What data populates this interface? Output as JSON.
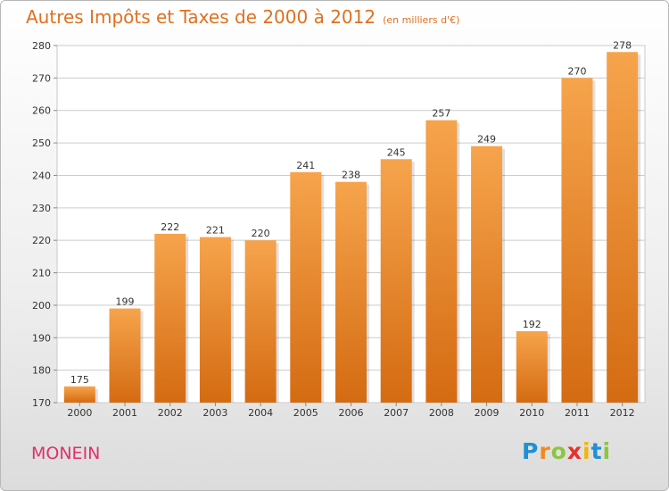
{
  "header": {
    "title": "Autres Impôts et Taxes de 2000 à 2012",
    "unit": "(en milliers d'€)"
  },
  "footer": {
    "place": "MONEIN",
    "logo_letters": [
      {
        "ch": "P",
        "color": "#1e90d6"
      },
      {
        "ch": "r",
        "color": "#f08a1c"
      },
      {
        "ch": "o",
        "color": "#8cc63f"
      },
      {
        "ch": "x",
        "color": "#e8302c"
      },
      {
        "ch": "i",
        "color": "#f2b705"
      },
      {
        "ch": "t",
        "color": "#1e90d6"
      },
      {
        "ch": "i",
        "color": "#8cc63f"
      }
    ]
  },
  "chart_data": {
    "type": "bar",
    "title": "Autres Impôts et Taxes de 2000 à 2012",
    "subtitle": "(en milliers d'€)",
    "categories": [
      "2000",
      "2001",
      "2002",
      "2003",
      "2004",
      "2005",
      "2006",
      "2007",
      "2008",
      "2009",
      "2010",
      "2011",
      "2012"
    ],
    "values": [
      175,
      199,
      222,
      221,
      220,
      241,
      238,
      245,
      257,
      249,
      192,
      270,
      278
    ],
    "ylim": [
      170,
      280
    ],
    "yticks": [
      170,
      180,
      190,
      200,
      210,
      220,
      230,
      240,
      250,
      260,
      270,
      280
    ],
    "grid": true,
    "data_labels": true,
    "colors": {
      "bar_top": "#f6a44c",
      "bar_bottom": "#d46b12",
      "grid": "#cccccc"
    }
  }
}
